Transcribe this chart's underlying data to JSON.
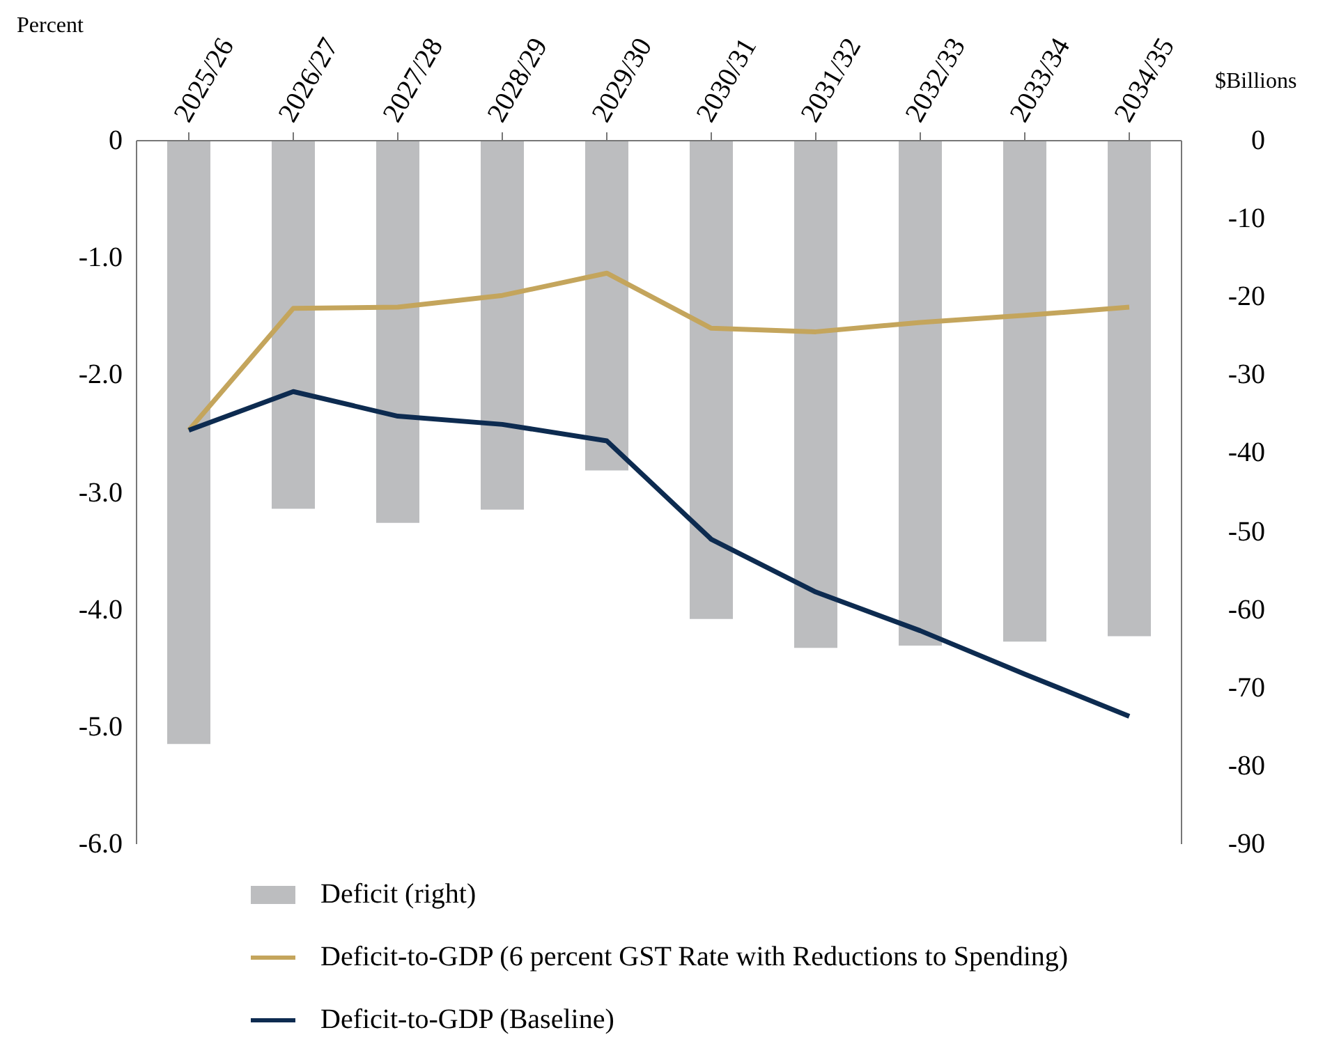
{
  "chart_data": {
    "type": "bar",
    "ylabel": "Percent",
    "y2label": "$Billions",
    "categories": [
      "2025/26",
      "2026/27",
      "2027/28",
      "2028/29",
      "2029/30",
      "2030/31",
      "2031/32",
      "2032/33",
      "2033/34",
      "2034/35"
    ],
    "series": [
      {
        "name": "Deficit (right)",
        "axis": "y2",
        "color": "#bcbdbf",
        "values": [
          -77.2,
          -47.1,
          -48.9,
          -47.2,
          -42.2,
          -61.2,
          -64.9,
          -64.6,
          -64.1,
          -63.4
        ]
      },
      {
        "name": "Deficit-to-GDP (6 percent GST Rate with Reductions to Spending)",
        "type": "line",
        "color": "#c4a55c",
        "values": [
          -2.47,
          -1.43,
          -1.42,
          -1.32,
          -1.13,
          -1.6,
          -1.63,
          -1.55,
          -1.49,
          -1.42
        ]
      },
      {
        "name": "Deficit-to-GDP (Baseline)",
        "type": "line",
        "color": "#0d2b50",
        "values": [
          -2.47,
          -2.14,
          -2.35,
          -2.42,
          -2.56,
          -3.4,
          -3.85,
          -4.18,
          -4.55,
          -4.91
        ]
      }
    ],
    "ylim": [
      -6,
      0
    ],
    "yticks": [
      0,
      {
        "value": -1,
        "label": "-1.0"
      },
      {
        "value": -2,
        "label": "-2.0"
      },
      {
        "value": -3,
        "label": "-3.0"
      },
      {
        "value": -4,
        "label": "-4.0"
      },
      {
        "value": -5,
        "label": "-5.0"
      },
      {
        "value": -6,
        "label": "-6.0"
      }
    ],
    "y2lim": [
      -90,
      0
    ],
    "y2ticks": [
      0,
      -10,
      -20,
      -30,
      -40,
      -50,
      -60,
      -70,
      -80,
      -90
    ],
    "grid": false,
    "legend": "bottom",
    "marker": "none",
    "line_style": "solid"
  }
}
